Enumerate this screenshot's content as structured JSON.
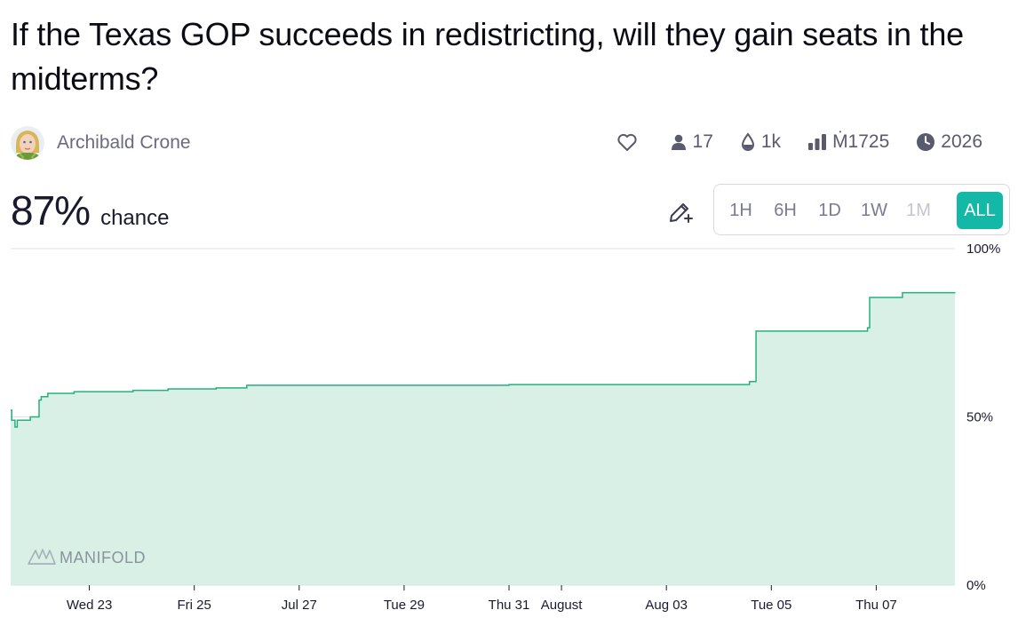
{
  "market": {
    "title": "If the Texas GOP succeeds in redistricting, will they gain seats in the midterms?",
    "author": "Archibald Crone",
    "stats": {
      "traders": "17",
      "liquidity": "1k",
      "volume": "Ṁ1725",
      "close_year": "2026"
    },
    "probability": "87%",
    "chance_label": "chance"
  },
  "icons": {
    "like": "heart-icon",
    "traders": "user-icon",
    "liquidity": "droplet-icon",
    "volume": "bar-chart-icon",
    "close": "clock-icon",
    "edit": "pencil-plus-icon",
    "watermark": "manifold-logo-icon"
  },
  "time_ranges": [
    {
      "label": "1H",
      "state": "enabled"
    },
    {
      "label": "6H",
      "state": "enabled"
    },
    {
      "label": "1D",
      "state": "enabled"
    },
    {
      "label": "1W",
      "state": "enabled"
    },
    {
      "label": "1M",
      "state": "disabled"
    },
    {
      "label": "ALL",
      "state": "active"
    }
  ],
  "watermark": "MANIFOLD",
  "colors": {
    "accent": "#14b8a6",
    "line": "#27b07e",
    "fill": "#d8f0e6"
  },
  "chart_data": {
    "type": "area",
    "y_unit": "percent",
    "ylim": [
      0,
      100
    ],
    "y_ticks": [
      "0%",
      "50%",
      "100%"
    ],
    "x_range": [
      "2025-07-21T12:00",
      "2025-08-08T12:00"
    ],
    "x_ticks": [
      {
        "date": "2025-07-23",
        "label": "Wed 23"
      },
      {
        "date": "2025-07-25",
        "label": "Fri 25"
      },
      {
        "date": "2025-07-27",
        "label": "Jul 27"
      },
      {
        "date": "2025-07-29",
        "label": "Tue 29"
      },
      {
        "date": "2025-07-31",
        "label": "Thu 31"
      },
      {
        "date": "2025-08-01",
        "label": "August"
      },
      {
        "date": "2025-08-03",
        "label": "Aug 03"
      },
      {
        "date": "2025-08-05",
        "label": "Tue 05"
      },
      {
        "date": "2025-08-07",
        "label": "Thu 07"
      }
    ],
    "points": [
      {
        "t": "2025-07-21T12:00",
        "y": 52
      },
      {
        "t": "2025-07-21T12:30",
        "y": 49
      },
      {
        "t": "2025-07-21T14:00",
        "y": 47
      },
      {
        "t": "2025-07-21T15:00",
        "y": 49
      },
      {
        "t": "2025-07-21T21:00",
        "y": 50
      },
      {
        "t": "2025-07-22T01:00",
        "y": 55
      },
      {
        "t": "2025-07-22T02:00",
        "y": 56
      },
      {
        "t": "2025-07-22T05:00",
        "y": 57
      },
      {
        "t": "2025-07-22T17:00",
        "y": 57.5
      },
      {
        "t": "2025-07-23T20:00",
        "y": 57.9
      },
      {
        "t": "2025-07-24T12:00",
        "y": 58.3
      },
      {
        "t": "2025-07-25T10:00",
        "y": 58.6
      },
      {
        "t": "2025-07-26T00:00",
        "y": 59.4
      },
      {
        "t": "2025-07-31T00:00",
        "y": 59.6
      },
      {
        "t": "2025-08-04T14:00",
        "y": 60.5
      },
      {
        "t": "2025-08-04T17:00",
        "y": 75.5
      },
      {
        "t": "2025-08-06T20:00",
        "y": 76.5
      },
      {
        "t": "2025-08-06T21:00",
        "y": 85.5
      },
      {
        "t": "2025-08-07T12:00",
        "y": 86.9
      },
      {
        "t": "2025-08-08T12:00",
        "y": 87
      }
    ]
  }
}
